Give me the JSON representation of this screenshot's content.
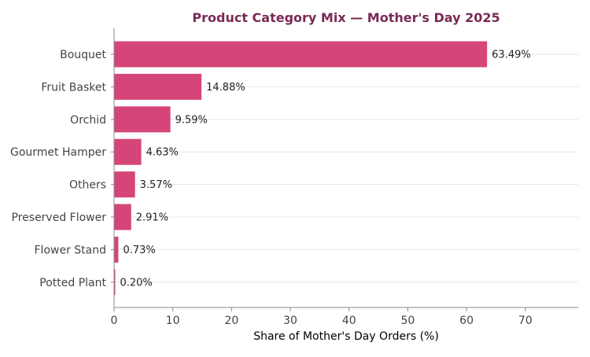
{
  "colors": {
    "bar": "#d6457a",
    "title": "#7a2a55",
    "grid": "#e6e6e6",
    "axis": "#888888"
  },
  "chart_data": {
    "type": "bar",
    "orientation": "horizontal",
    "title": "Product Category Mix — Mother's Day 2025",
    "xlabel": "Share of Mother's Day Orders (%)",
    "ylabel": "",
    "categories": [
      "Bouquet",
      "Fruit Basket",
      "Orchid",
      "Gourmet Hamper",
      "Others",
      "Preserved Flower",
      "Flower Stand",
      "Potted Plant"
    ],
    "values": [
      63.49,
      14.88,
      9.59,
      4.63,
      3.57,
      2.91,
      0.73,
      0.2
    ],
    "value_labels": [
      "63.49%",
      "14.88%",
      "9.59%",
      "4.63%",
      "3.57%",
      "2.91%",
      "0.73%",
      "0.20%"
    ],
    "xlim": [
      0,
      79
    ],
    "xticks": [
      0,
      10,
      20,
      30,
      40,
      50,
      60,
      70
    ],
    "grid": "y",
    "legend": "none"
  }
}
